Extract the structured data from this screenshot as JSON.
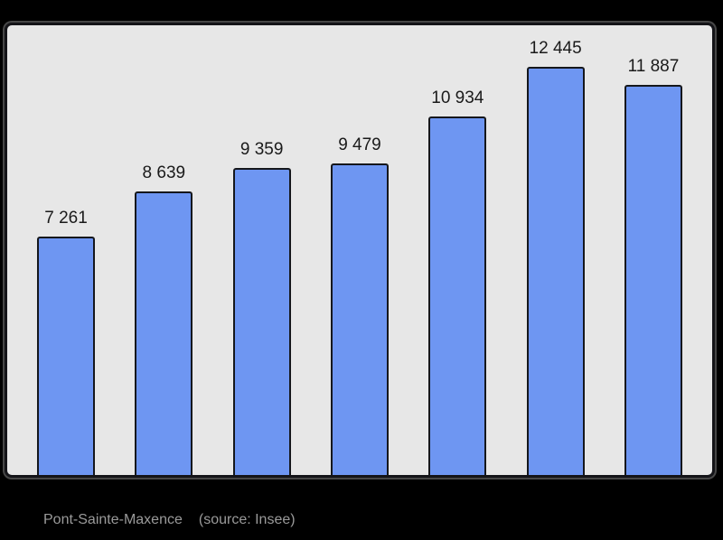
{
  "page": {
    "background": "#000000"
  },
  "colors": {
    "plot_background": "#e7e7e7",
    "plot_border": "#141418",
    "bar_fill": "#6e96f2",
    "bar_border": "#15171c",
    "value_label_color": "#1a1a1a",
    "caption_color": "#9a9a9a"
  },
  "chart_data": {
    "type": "bar",
    "categories": [
      "",
      "",
      "",
      "",
      "",
      "",
      ""
    ],
    "values": [
      7261,
      8639,
      9359,
      9479,
      10934,
      12445,
      11887
    ],
    "data_labels": [
      "7 261",
      "8 639",
      "9 359",
      "9 479",
      "10 934",
      "12 445",
      "11 887"
    ],
    "title": "",
    "xlabel": "",
    "ylabel": "",
    "ylim": [
      0,
      13700
    ],
    "grid": false,
    "legend": "none",
    "caption": "Pont-Sainte-Maxence",
    "source_note": "(source: Insee)"
  }
}
